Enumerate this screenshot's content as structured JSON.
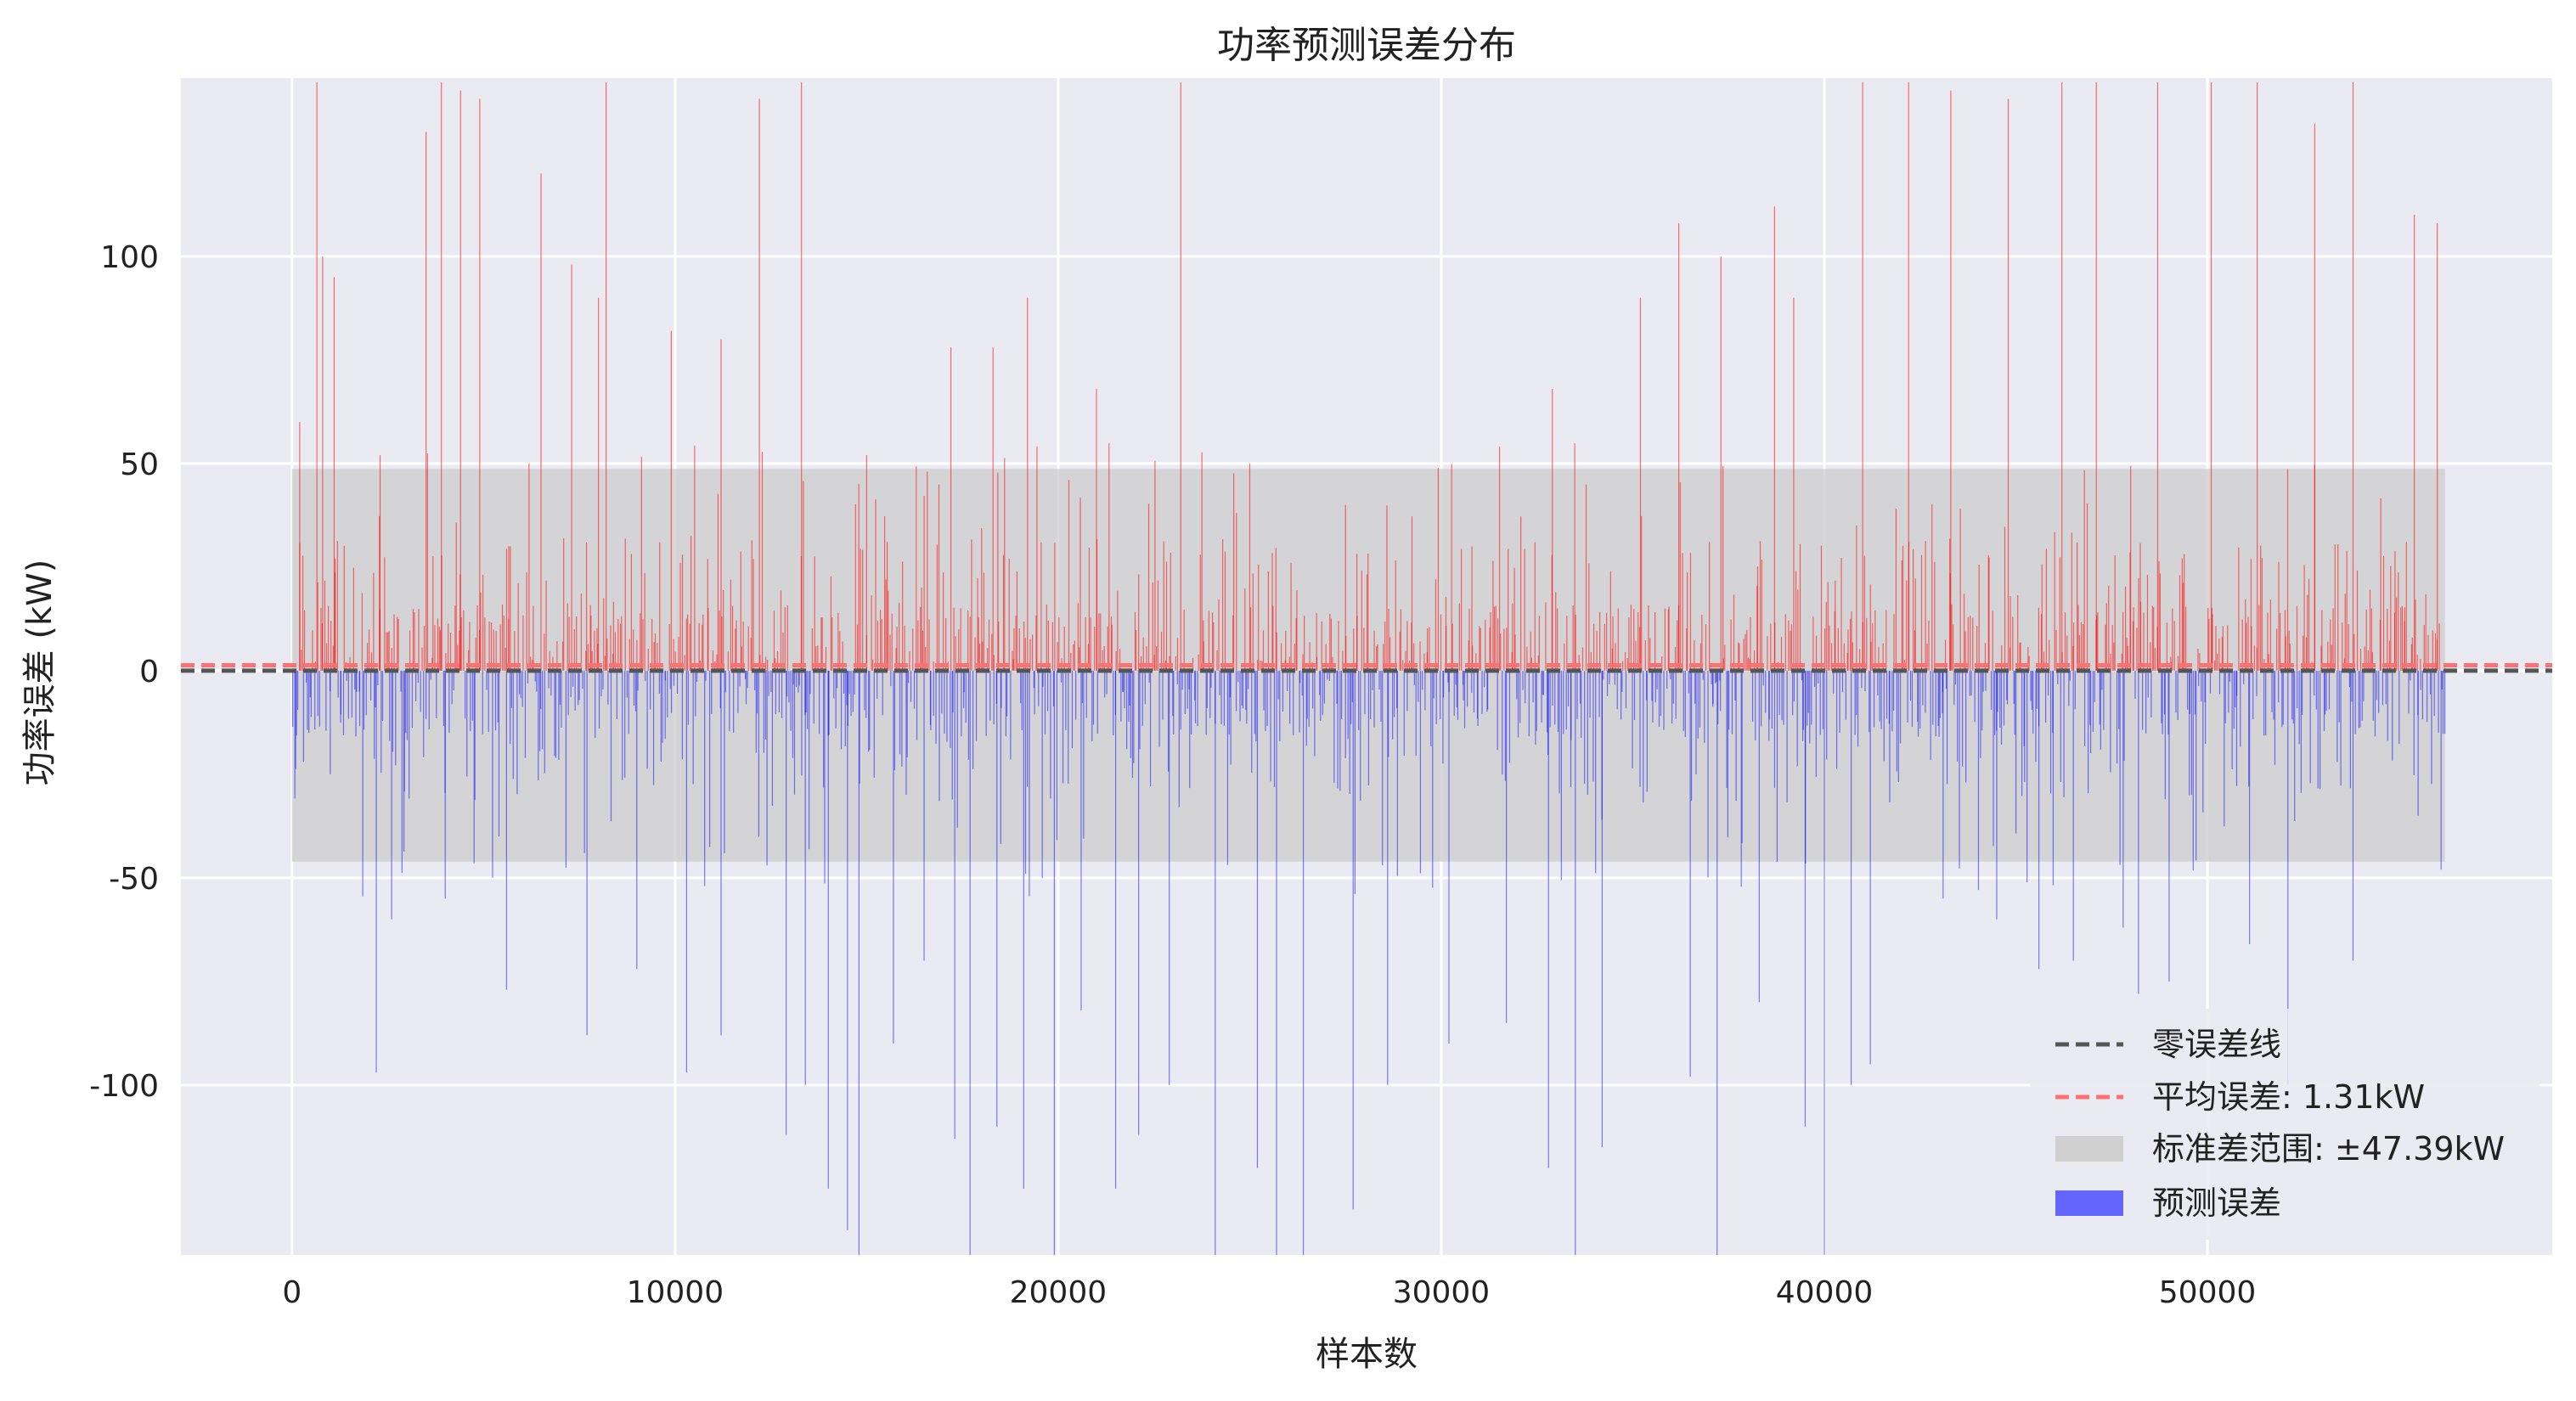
{
  "chart_data": {
    "type": "bar",
    "title": "功率预测误差分布",
    "xlabel": "样本数",
    "ylabel": "功率误差 (kW)",
    "xlim": [
      -2900,
      59000
    ],
    "ylim": [
      -141,
      143
    ],
    "x_ticks": [
      {
        "value": 0,
        "label": "0"
      },
      {
        "value": 10000,
        "label": "10000"
      },
      {
        "value": 20000,
        "label": "20000"
      },
      {
        "value": 30000,
        "label": "30000"
      },
      {
        "value": 40000,
        "label": "40000"
      },
      {
        "value": 50000,
        "label": "50000"
      }
    ],
    "y_ticks": [
      {
        "value": 100,
        "label": "100"
      },
      {
        "value": 50,
        "label": "50"
      },
      {
        "value": 0,
        "label": "0"
      },
      {
        "value": -50,
        "label": "-50"
      },
      {
        "value": -100,
        "label": "-100"
      }
    ],
    "grid": true,
    "legend_position": "bottom-right",
    "sample_count": 56200,
    "positive_color": "#ff0000",
    "negative_color": "#0000ff",
    "zero_line": {
      "value": 0,
      "color": "#555555",
      "style": "dashed"
    },
    "mean_line": {
      "value": 1.31,
      "color": "#ff7070",
      "style": "dashed"
    },
    "std_band": {
      "lower": -46.08,
      "upper": 48.7,
      "color": "#cccccc"
    },
    "series": [
      {
        "name": "预测误差",
        "color": "#6464ff",
        "sampled_peaks": [
          [
            200,
            60
          ],
          [
            650,
            142
          ],
          [
            800,
            100
          ],
          [
            1100,
            95
          ],
          [
            2300,
            52
          ],
          [
            3500,
            130
          ],
          [
            3900,
            142
          ],
          [
            4400,
            140
          ],
          [
            4900,
            138
          ],
          [
            5700,
            30
          ],
          [
            6500,
            120
          ],
          [
            7300,
            98
          ],
          [
            8000,
            90
          ],
          [
            8200,
            142
          ],
          [
            9900,
            82
          ],
          [
            11200,
            80
          ],
          [
            12200,
            138
          ],
          [
            13300,
            142
          ],
          [
            15000,
            52
          ],
          [
            17200,
            78
          ],
          [
            18300,
            78
          ],
          [
            19200,
            90
          ],
          [
            21000,
            68
          ],
          [
            23200,
            142
          ],
          [
            25000,
            50
          ],
          [
            27500,
            40
          ],
          [
            30800,
            30
          ],
          [
            32900,
            68
          ],
          [
            35200,
            90
          ],
          [
            36200,
            108
          ],
          [
            37300,
            100
          ],
          [
            38700,
            112
          ],
          [
            39200,
            90
          ],
          [
            41000,
            142
          ],
          [
            42200,
            142
          ],
          [
            43300,
            140
          ],
          [
            44800,
            138
          ],
          [
            46200,
            142
          ],
          [
            47100,
            142
          ],
          [
            48700,
            142
          ],
          [
            50100,
            142
          ],
          [
            51300,
            142
          ],
          [
            52800,
            132
          ],
          [
            53800,
            142
          ],
          [
            55400,
            110
          ],
          [
            56000,
            108
          ],
          [
            300,
            -22
          ],
          [
            1000,
            -25
          ],
          [
            2200,
            -97
          ],
          [
            2600,
            -60
          ],
          [
            4000,
            -55
          ],
          [
            5600,
            -77
          ],
          [
            7700,
            -88
          ],
          [
            9000,
            -72
          ],
          [
            10300,
            -97
          ],
          [
            11200,
            -88
          ],
          [
            12400,
            -47
          ],
          [
            12900,
            -112
          ],
          [
            13400,
            -100
          ],
          [
            14000,
            -125
          ],
          [
            14500,
            -135
          ],
          [
            14800,
            -141
          ],
          [
            15700,
            -90
          ],
          [
            16500,
            -70
          ],
          [
            17300,
            -113
          ],
          [
            17700,
            -141
          ],
          [
            18400,
            -110
          ],
          [
            19100,
            -125
          ],
          [
            19900,
            -141
          ],
          [
            20600,
            -82
          ],
          [
            21500,
            -125
          ],
          [
            22100,
            -112
          ],
          [
            22900,
            -100
          ],
          [
            24100,
            -141
          ],
          [
            25200,
            -120
          ],
          [
            25700,
            -141
          ],
          [
            26400,
            -141
          ],
          [
            27700,
            -130
          ],
          [
            28600,
            -100
          ],
          [
            30200,
            -90
          ],
          [
            31700,
            -85
          ],
          [
            32800,
            -120
          ],
          [
            33500,
            -141
          ],
          [
            34200,
            -115
          ],
          [
            36500,
            -98
          ],
          [
            37200,
            -141
          ],
          [
            38300,
            -80
          ],
          [
            39500,
            -110
          ],
          [
            40000,
            -141
          ],
          [
            40700,
            -100
          ],
          [
            41200,
            -95
          ],
          [
            43100,
            -55
          ],
          [
            44500,
            -60
          ],
          [
            45600,
            -72
          ],
          [
            46500,
            -70
          ],
          [
            47800,
            -62
          ],
          [
            48200,
            -78
          ],
          [
            49000,
            -75
          ],
          [
            51100,
            -66
          ],
          [
            52100,
            -100
          ],
          [
            53800,
            -70
          ],
          [
            55500,
            -35
          ],
          [
            56100,
            -48
          ]
        ]
      }
    ],
    "legend": [
      {
        "label": "零误差线",
        "kind": "dashed-line",
        "color": "#555555"
      },
      {
        "label": "平均误差: 1.31kW",
        "kind": "dashed-line",
        "color": "#ff7070"
      },
      {
        "label": "标准差范围: ±47.39kW",
        "kind": "patch",
        "color": "#d0d0d0"
      },
      {
        "label": "预测误差",
        "kind": "patch",
        "color": "#6464ff"
      }
    ]
  }
}
